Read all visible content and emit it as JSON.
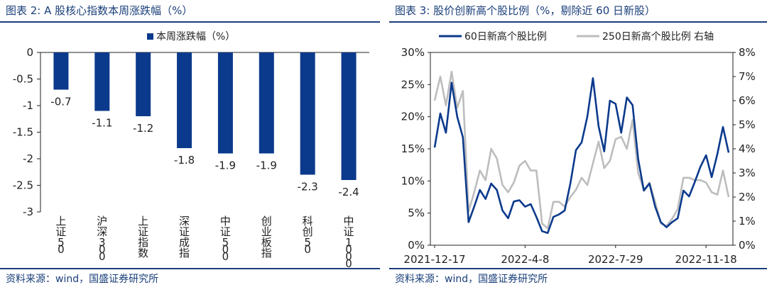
{
  "left": {
    "fig_title": "图表 2:  A 股核心指数本周涨跌幅（%）",
    "source": "资料来源：wind，国盛证券研究所"
  },
  "right": {
    "fig_title": "图表 3:  股价创新高个股比例（%，剔除近 60 日新股）",
    "source": "资料来源：wind，国盛证券研究所"
  },
  "colors": {
    "navy": "#0b3a8c",
    "gray": "#bdbdbd",
    "title": "#1a3f7a"
  },
  "chart_data": [
    {
      "type": "bar",
      "title": "本周涨跌幅（%）",
      "legend": [
        "本周涨跌幅（%）"
      ],
      "categories": [
        "上证50",
        "沪深300",
        "上证指数",
        "深证成指",
        "中证500",
        "创业板指",
        "科创50",
        "中证1000"
      ],
      "values": [
        -0.7,
        -1.1,
        -1.2,
        -1.8,
        -1.9,
        -1.9,
        -2.3,
        -2.4
      ],
      "data_labels": [
        "-0.7",
        "-1.1",
        "-1.2",
        "-1.8",
        "-1.9",
        "-1.9",
        "-2.3",
        "-2.4"
      ],
      "ylim": [
        -3,
        0
      ],
      "yticks": [
        0,
        -0.5,
        -1,
        -1.5,
        -2,
        -2.5,
        -3
      ],
      "ytick_labels": [
        "0",
        "-0.5",
        "-1",
        "-1.5",
        "-2",
        "-2.5",
        "-3"
      ]
    },
    {
      "type": "line",
      "legend": [
        "60日新高个股比例",
        "250日新高个股比例 右轴"
      ],
      "x_tick_labels": [
        "2021-12-17",
        "2022-4-8",
        "2022-7-29",
        "2022-11-18"
      ],
      "x_tick_index": [
        0,
        16,
        32,
        48
      ],
      "ylim_left": [
        0,
        30
      ],
      "ytick_labels_left": [
        "0%",
        "5%",
        "10%",
        "15%",
        "20%",
        "25%",
        "30%"
      ],
      "ylim_right": [
        0,
        8
      ],
      "ytick_labels_right": [
        "0%",
        "1%",
        "2%",
        "3%",
        "4%",
        "5%",
        "6%",
        "7%",
        "8%"
      ],
      "series": [
        {
          "name": "60日新高个股比例",
          "axis": "left",
          "values": [
            15.2,
            20.5,
            17.5,
            25.3,
            20.0,
            16.8,
            3.6,
            6.0,
            8.6,
            7.2,
            9.6,
            8.6,
            5.4,
            4.2,
            6.8,
            7.0,
            6.0,
            6.4,
            4.4,
            2.2,
            1.9,
            4.4,
            4.8,
            5.4,
            9.6,
            14.8,
            16.0,
            20.0,
            26.0,
            18.5,
            14.6,
            22.5,
            22.0,
            17.5,
            23.0,
            21.8,
            13.4,
            8.5,
            9.6,
            6.0,
            3.6,
            2.8,
            3.6,
            4.2,
            8.5,
            7.6,
            9.8,
            12.2,
            14.0,
            10.6,
            14.2,
            18.4,
            14.4
          ]
        },
        {
          "name": "250日新高个股比例 右轴",
          "axis": "right",
          "values": [
            6.0,
            7.0,
            5.8,
            7.2,
            5.7,
            6.4,
            1.4,
            2.2,
            3.1,
            2.7,
            4.0,
            3.6,
            2.5,
            2.2,
            2.6,
            3.3,
            3.5,
            3.1,
            3.1,
            0.9,
            0.7,
            1.8,
            1.8,
            1.6,
            2.0,
            2.3,
            2.8,
            2.5,
            3.4,
            4.3,
            3.2,
            3.5,
            4.4,
            4.5,
            4.0,
            5.2,
            3.0,
            2.3,
            2.6,
            1.8,
            0.9,
            0.8,
            1.1,
            1.5,
            2.8,
            2.8,
            2.7,
            2.7,
            2.6,
            2.2,
            2.1,
            3.1,
            2.0
          ]
        }
      ]
    }
  ]
}
